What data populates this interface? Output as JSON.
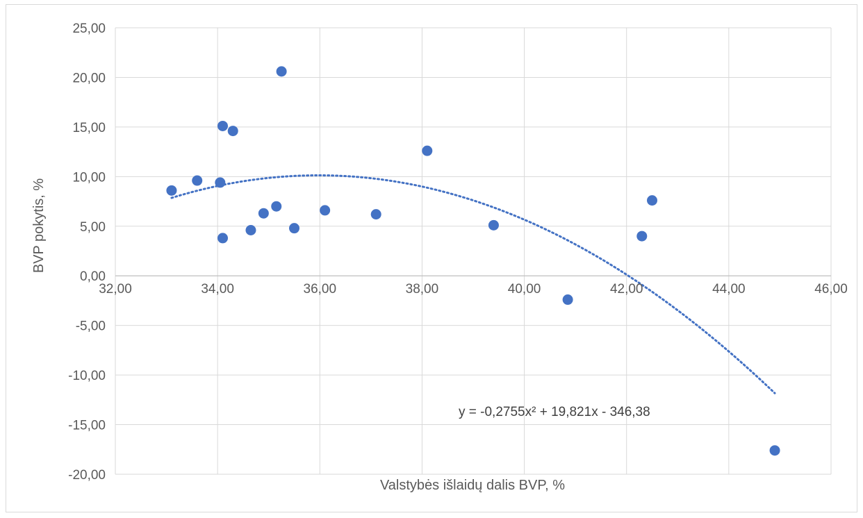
{
  "chart_data": {
    "type": "scatter",
    "title": "",
    "xlabel": "Valstybės išlaidų dalis BVP, %",
    "ylabel": "BVP pokytis, %",
    "xlim": [
      32,
      46
    ],
    "ylim": [
      -20,
      25
    ],
    "x_ticks": [
      "32,00",
      "34,00",
      "36,00",
      "38,00",
      "40,00",
      "42,00",
      "44,00",
      "46,00"
    ],
    "y_ticks": [
      "25,00",
      "20,00",
      "15,00",
      "10,00",
      "5,00",
      "0,00",
      "-5,00",
      "-10,00",
      "-15,00",
      "-20,00"
    ],
    "x_tick_values": [
      32,
      34,
      36,
      38,
      40,
      42,
      44,
      46
    ],
    "y_tick_values": [
      25,
      20,
      15,
      10,
      5,
      0,
      -5,
      -10,
      -15,
      -20
    ],
    "grid": true,
    "legend": "none",
    "series": [
      {
        "color": "#4472c4",
        "points": [
          {
            "x": 33.1,
            "y": 8.6
          },
          {
            "x": 33.6,
            "y": 9.6
          },
          {
            "x": 34.05,
            "y": 9.4
          },
          {
            "x": 34.1,
            "y": 15.1
          },
          {
            "x": 34.1,
            "y": 3.8
          },
          {
            "x": 34.3,
            "y": 14.6
          },
          {
            "x": 34.65,
            "y": 4.6
          },
          {
            "x": 34.9,
            "y": 6.3
          },
          {
            "x": 35.15,
            "y": 7.0
          },
          {
            "x": 35.25,
            "y": 20.6
          },
          {
            "x": 35.5,
            "y": 4.8
          },
          {
            "x": 36.1,
            "y": 6.6
          },
          {
            "x": 37.1,
            "y": 6.2
          },
          {
            "x": 38.1,
            "y": 12.6
          },
          {
            "x": 39.4,
            "y": 5.1
          },
          {
            "x": 40.85,
            "y": -2.4
          },
          {
            "x": 42.3,
            "y": 4.0
          },
          {
            "x": 42.5,
            "y": 7.6
          },
          {
            "x": 44.9,
            "y": -17.6
          }
        ]
      }
    ],
    "trendline": {
      "type": "polynomial",
      "a": -0.2755,
      "b": 19.821,
      "c": -346.38,
      "x_range": [
        33.1,
        44.9
      ],
      "color": "#4472c4",
      "label": "y = -0,2755x² + 19,821x - 346,38"
    }
  }
}
